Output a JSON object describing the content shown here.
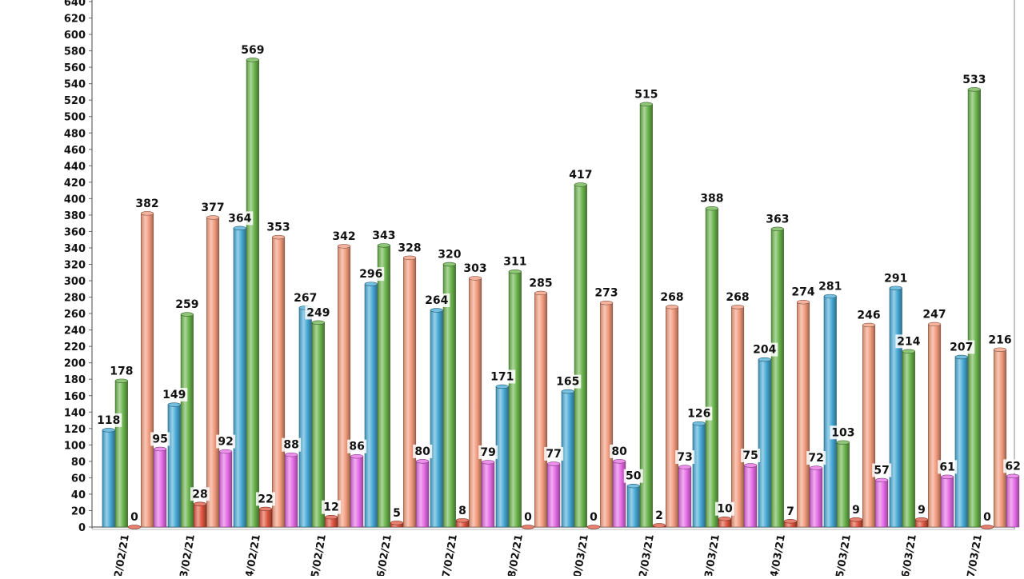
{
  "chart_data": {
    "type": "bar",
    "categories": [
      "2/02/21",
      "3/02/21",
      "4/02/21",
      "5/02/21",
      "6/02/21",
      "7/02/21",
      "8/02/21",
      "0/03/21",
      "2/03/21",
      "3/03/21",
      "4/03/21",
      "5/03/21",
      "6/03/21",
      "7/03/21"
    ],
    "series": [
      {
        "color": "#45a9d6",
        "values": [
          118,
          149,
          364,
          267,
          296,
          264,
          171,
          165,
          50,
          126,
          204,
          281,
          291,
          207
        ]
      },
      {
        "color": "#69b34a",
        "values": [
          178,
          259,
          569,
          249,
          343,
          320,
          311,
          417,
          515,
          388,
          363,
          103,
          214,
          533
        ]
      },
      {
        "color": "#e0563f",
        "values": [
          0,
          28,
          22,
          12,
          5,
          8,
          0,
          0,
          2,
          10,
          7,
          9,
          9,
          0
        ]
      },
      {
        "color": "#f29a7c",
        "values": [
          382,
          377,
          353,
          342,
          328,
          303,
          285,
          273,
          268,
          268,
          274,
          246,
          247,
          216
        ]
      },
      {
        "color": "#e66be6",
        "values": [
          95,
          92,
          88,
          86,
          80,
          79,
          77,
          80,
          73,
          75,
          72,
          57,
          61,
          62
        ]
      }
    ],
    "ylim": [
      0,
      640
    ],
    "yticks": [
      0,
      20,
      40,
      60,
      80,
      100,
      120,
      140,
      160,
      180,
      200,
      220,
      240,
      260,
      280,
      300,
      320,
      340,
      360,
      380,
      400,
      420,
      440,
      460,
      480,
      500,
      520,
      540,
      560,
      580,
      600,
      620,
      640
    ],
    "grid": false,
    "data_labels": true
  }
}
